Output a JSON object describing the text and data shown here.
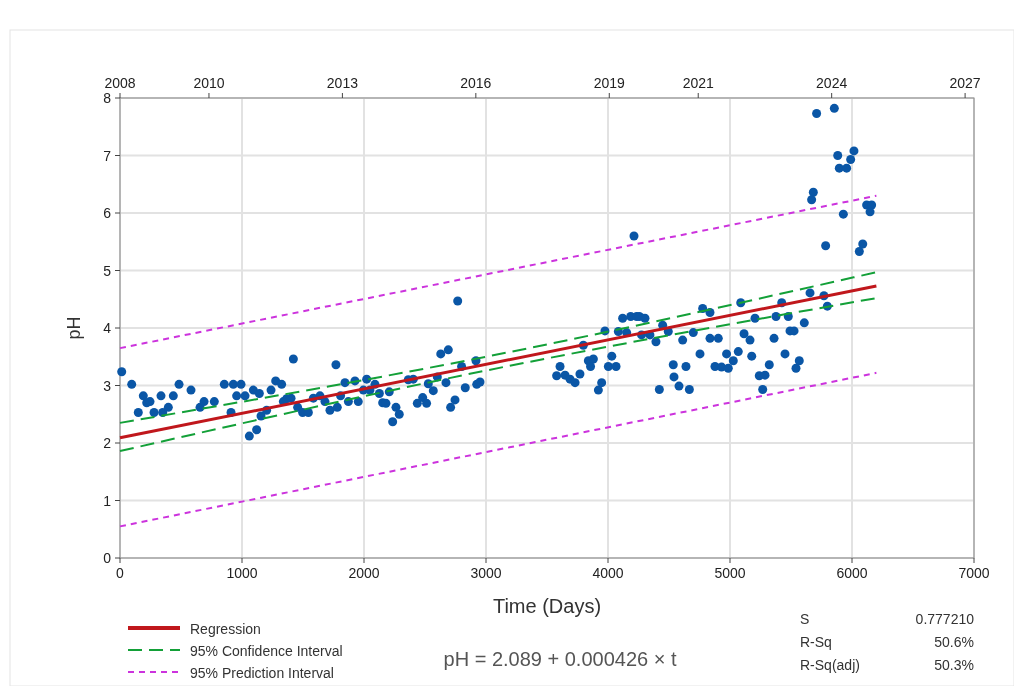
{
  "chart_data": {
    "type": "scatter",
    "xlabel": "Time (Days)",
    "ylabel": "pH",
    "xlim": [
      0,
      7000
    ],
    "xticks": [
      0,
      1000,
      2000,
      3000,
      4000,
      5000,
      6000,
      7000
    ],
    "x2lim": [
      2008,
      2027.2
    ],
    "x2ticks": [
      2008,
      2010,
      2013,
      2016,
      2019,
      2021,
      2024,
      2027
    ],
    "ylim": [
      0,
      8
    ],
    "yticks": [
      0,
      1,
      2,
      3,
      4,
      5,
      6,
      7,
      8
    ],
    "grid": true,
    "legend": "bottom left",
    "annotations": [
      "pH = 2.089 + 0.000426 × t",
      "S",
      "0.777210",
      "R-Sq",
      "50.6%",
      "R-Sq(adj)",
      "50.3%"
    ],
    "series": [
      {
        "color": "#0a56a6",
        "marker": "circle",
        "x": [
          14,
          96,
          150,
          191,
          219,
          246,
          279,
          336,
          350,
          396,
          437,
          484,
          582,
          656,
          689,
          773,
          855,
          910,
          929,
          956,
          992,
          1025,
          1060,
          1120,
          1093,
          1142,
          1156,
          1202,
          1238,
          1276,
          1325,
          1339,
          1366,
          1402,
          1421,
          1456,
          1497,
          1544,
          1585,
          1639,
          1680,
          1721,
          1770,
          1781,
          1808,
          1844,
          1872,
          1926,
          1953,
          1995,
          2022,
          2049,
          2090,
          2126,
          2153,
          2207,
          2235,
          2262,
          2180,
          2289,
          2363,
          2404,
          2437,
          2481,
          2513,
          2527,
          2568,
          2601,
          2629,
          2691,
          2672,
          2710,
          2746,
          2768,
          2800,
          2830,
          2918,
          2924,
          2951,
          3607,
          3579,
          3648,
          3689,
          3730,
          3770,
          3798,
          3839,
          3880,
          3857,
          3921,
          3948,
          4003,
          4031,
          4066,
          3975,
          4085,
          4120,
          4153,
          4186,
          4235,
          4213,
          4257,
          4303,
          4275,
          4344,
          4393,
          4448,
          4494,
          4421,
          4535,
          4541,
          4582,
          4639,
          4667,
          4612,
          4699,
          4754,
          4776,
          4836,
          4836,
          4904,
          4877,
          4931,
          4986,
          4972,
          5027,
          5068,
          5088,
          5115,
          5164,
          5178,
          5205,
          5240,
          5268,
          5287,
          5322,
          5361,
          5377,
          5424,
          5451,
          5478,
          5492,
          5525,
          5541,
          5568,
          5609,
          5656,
          5770,
          5798,
          5710,
          5855,
          5883,
          5896,
          5956,
          5989,
          6016,
          5683,
          5669,
          5929,
          5784,
          6060,
          6088,
          6120,
          6161,
          6148
        ],
        "values": [
          3.24,
          3.02,
          2.53,
          2.82,
          2.7,
          2.72,
          2.53,
          2.82,
          2.53,
          2.62,
          2.82,
          3.02,
          2.92,
          2.62,
          2.72,
          2.72,
          3.02,
          2.53,
          3.02,
          2.82,
          3.02,
          2.82,
          2.12,
          2.23,
          2.92,
          2.86,
          2.47,
          2.57,
          2.92,
          3.08,
          3.02,
          2.72,
          2.77,
          2.78,
          3.46,
          2.62,
          2.53,
          2.53,
          2.78,
          2.82,
          2.72,
          2.57,
          3.36,
          2.62,
          2.82,
          3.05,
          2.72,
          3.08,
          2.72,
          2.92,
          3.11,
          2.92,
          3.02,
          2.86,
          2.7,
          2.89,
          2.37,
          2.62,
          2.69,
          2.5,
          3.1,
          3.11,
          2.69,
          2.79,
          2.69,
          3.03,
          2.91,
          3.15,
          3.55,
          3.62,
          3.05,
          2.62,
          2.75,
          4.47,
          3.33,
          2.96,
          3.43,
          3.02,
          3.06,
          3.33,
          3.17,
          3.18,
          3.11,
          3.05,
          3.2,
          3.7,
          3.43,
          3.46,
          3.33,
          2.92,
          3.05,
          3.33,
          3.51,
          3.33,
          3.95,
          3.94,
          4.17,
          3.92,
          4.2,
          4.2,
          5.6,
          4.2,
          4.17,
          3.88,
          3.88,
          3.76,
          4.05,
          3.94,
          2.93,
          3.36,
          3.15,
          2.99,
          3.33,
          2.93,
          3.79,
          3.92,
          3.55,
          4.34,
          4.27,
          3.82,
          3.82,
          3.33,
          3.32,
          3.3,
          3.55,
          3.43,
          3.59,
          4.44,
          3.9,
          3.79,
          3.51,
          4.17,
          3.17,
          2.93,
          3.18,
          3.36,
          3.82,
          4.2,
          4.44,
          3.55,
          4.2,
          3.95,
          3.95,
          3.3,
          3.43,
          4.09,
          4.61,
          4.56,
          4.38,
          7.73,
          7.82,
          7.0,
          6.78,
          6.78,
          6.93,
          7.08,
          6.36,
          6.23,
          5.98,
          5.43,
          5.33,
          5.46,
          6.14,
          6.14,
          6.02
        ]
      },
      {
        "type": "line",
        "name": "Regression",
        "color": "#c0171c",
        "line_style": "solid",
        "x": [
          0,
          6200
        ],
        "values": [
          2.09,
          4.73
        ]
      },
      {
        "type": "line",
        "name": "95% Confidence Interval",
        "color": "#13a038",
        "line_style": "dashed",
        "x": [
          0,
          3000,
          6200
        ],
        "values": [
          2.35,
          3.5,
          4.97
        ]
      },
      {
        "type": "line",
        "color": "#13a038",
        "line_style": "dashed",
        "x": [
          0,
          3000,
          6200
        ],
        "values": [
          1.86,
          3.26,
          4.52
        ]
      },
      {
        "type": "line",
        "name": "95% Prediction Interval",
        "color": "#cc33dd",
        "line_style": "dotted",
        "x": [
          0,
          6200
        ],
        "values": [
          3.65,
          6.3
        ]
      },
      {
        "type": "line",
        "color": "#cc33dd",
        "line_style": "dotted",
        "x": [
          0,
          6200
        ],
        "values": [
          0.55,
          3.22
        ]
      }
    ]
  }
}
